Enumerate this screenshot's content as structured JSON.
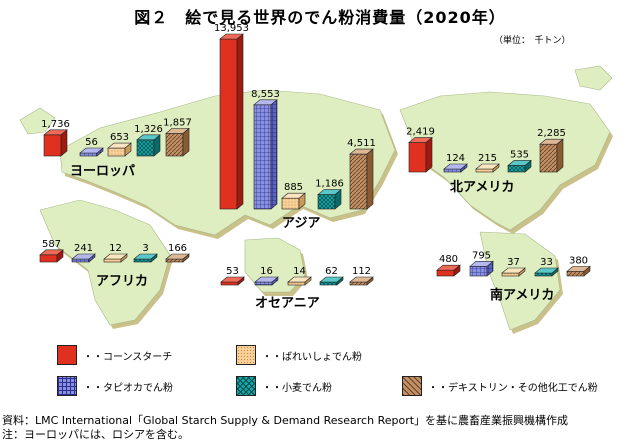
{
  "title": "図２　絵で見る世界のでん粉消費量（2020年）",
  "unit": "（単位：　千トン）",
  "legend": [
    {
      "label": "・・コーンスターチ",
      "color": "#e03020"
    },
    {
      "label": "・・ばれいしょでん粉",
      "color": "#f5c98c"
    },
    {
      "label": "・・デキストリン・その他化工でん粉",
      "color": "#b8855c"
    },
    {
      "label": "・・タピオカでん粉",
      "color": "#7f86dc"
    },
    {
      "label": "・・小麦でん粉",
      "color": "#129c9c"
    }
  ],
  "chart_data": {
    "type": "bar",
    "categories": [
      "コーンスターチ",
      "タピオカでん粉",
      "ばれいしょでん粉",
      "小麦でん粉",
      "デキストリン・その他化工でん粉"
    ],
    "series": [
      {
        "name": "ヨーロッパ",
        "values": [
          1736,
          56,
          653,
          1326,
          1857
        ]
      },
      {
        "name": "アジア",
        "values": [
          13953,
          8553,
          885,
          1186,
          4511
        ]
      },
      {
        "name": "北アメリカ",
        "values": [
          2419,
          124,
          215,
          535,
          2285
        ]
      },
      {
        "name": "アフリカ",
        "values": [
          587,
          241,
          12,
          3,
          166
        ]
      },
      {
        "name": "オセアニア",
        "values": [
          53,
          16,
          14,
          62,
          112
        ]
      },
      {
        "name": "南アメリカ",
        "values": [
          480,
          795,
          37,
          33,
          380
        ]
      }
    ],
    "value_labels": {
      "ヨーロッパ": [
        "1,736",
        "56",
        "653",
        "1,326",
        "1,857"
      ],
      "アジア": [
        "13,953",
        "8,553",
        "885",
        "1,186",
        "4,511"
      ],
      "北アメリカ": [
        "2,419",
        "124",
        "215",
        "535",
        "2,285"
      ],
      "アフリカ": [
        "587",
        "241",
        "12",
        "3",
        "166"
      ],
      "オセアニア": [
        "53",
        "16",
        "14",
        "62",
        "112"
      ],
      "南アメリカ": [
        "480",
        "795",
        "37",
        "33",
        "380"
      ]
    }
  },
  "notes": [
    "資料：LMC International「Global Starch Supply & Demand Research Report」を基に農畜産業振興機構作成",
    "注：ヨーロッパには、ロシアを含む。"
  ]
}
